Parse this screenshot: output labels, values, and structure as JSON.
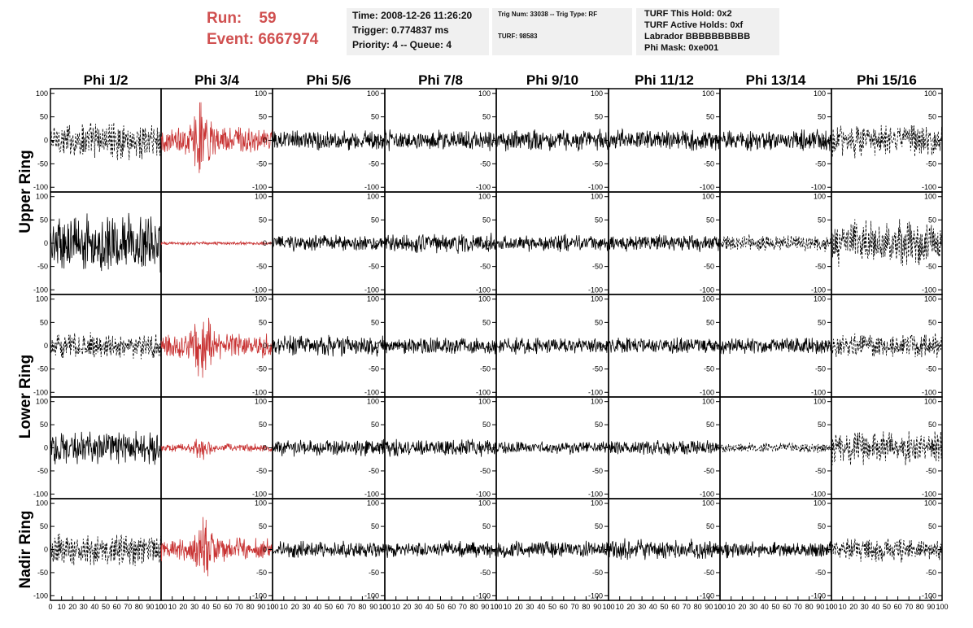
{
  "header": {
    "run_label": "Run:",
    "run_value": "59",
    "event_label": "Event:",
    "event_value": "6667974"
  },
  "info_box_1": {
    "time": "Time: 2008-12-26 11:26:20",
    "trigger": "Trigger: 0.774837 ms",
    "priority": "Priority: 4 -- Queue: 4"
  },
  "info_box_2": {
    "trig_line": "Trig Num: 33038 -- Trig Type: RF",
    "turf_line": "TURF: 98583"
  },
  "info_box_3": {
    "hold": "TURF This Hold: 0x2",
    "active": "TURF Active Holds: 0xf",
    "labrador": "Labrador BBBBBBBBBB",
    "phi_mask": "Phi Mask: 0xe001"
  },
  "colors": {
    "trace": "#000000",
    "highlight_trace": "#c83232",
    "header_red": "#d05050",
    "box_bg": "#f0f0f0"
  },
  "chart_data": {
    "type": "line",
    "columns": [
      "Phi 1/2",
      "Phi 3/4",
      "Phi 5/6",
      "Phi 7/8",
      "Phi 9/10",
      "Phi 11/12",
      "Phi 13/14",
      "Phi 15/16"
    ],
    "row_groups": [
      "Upper Ring",
      "Lower Ring",
      "Nadir Ring"
    ],
    "rows_per_group": [
      2,
      2,
      1
    ],
    "xlim": [
      0,
      100
    ],
    "ylim": [
      -110,
      110
    ],
    "x_ticks": [
      0,
      10,
      20,
      30,
      40,
      50,
      60,
      70,
      80,
      90,
      100
    ],
    "y_ticks": [
      -100,
      -50,
      0,
      50,
      100
    ],
    "highlight_column": "Phi 3/4",
    "dashed_columns": [
      "Phi 1/2",
      "Phi 15/16"
    ],
    "panel_amplitudes": [
      [
        45,
        95,
        25,
        25,
        25,
        25,
        25,
        40
      ],
      [
        70,
        4,
        20,
        25,
        20,
        20,
        20,
        55
      ],
      [
        30,
        90,
        25,
        20,
        20,
        20,
        20,
        30
      ],
      [
        40,
        30,
        20,
        20,
        15,
        18,
        12,
        40
      ],
      [
        40,
        80,
        20,
        20,
        20,
        25,
        20,
        30
      ]
    ],
    "panel_dashed": [
      [
        true,
        false,
        false,
        false,
        false,
        false,
        false,
        true
      ],
      [
        false,
        false,
        false,
        false,
        false,
        false,
        true,
        true
      ],
      [
        true,
        false,
        false,
        false,
        false,
        false,
        false,
        true
      ],
      [
        false,
        false,
        false,
        false,
        false,
        false,
        true,
        true
      ],
      [
        true,
        false,
        false,
        false,
        false,
        false,
        false,
        true
      ]
    ]
  }
}
